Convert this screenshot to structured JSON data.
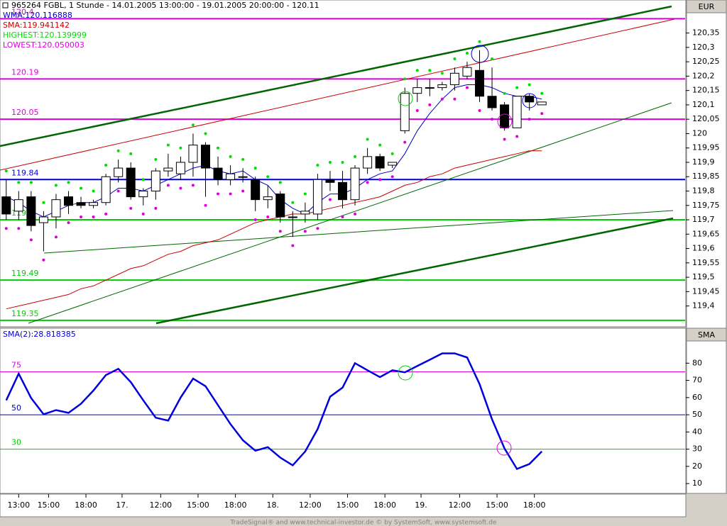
{
  "header": {
    "title": "965264  FGBL, 1 Stunde - 14.01.2005 13:00:00 - 19.01.2005 20:00:00 - 120.11"
  },
  "footer": "TradeSignal® and www.technical-investor.de © by SystemSoft, www.systemsoft.de",
  "chart_data": [
    {
      "type": "candlestick",
      "axis_label": "EUR",
      "up_color": "#ffffff",
      "down_color": "#000000",
      "open": [
        119.78,
        119.73,
        119.78,
        119.69,
        119.71,
        119.78,
        119.76,
        119.75,
        119.76,
        119.85,
        119.88,
        119.78,
        119.8,
        119.87,
        119.86,
        119.9,
        119.96,
        119.88,
        119.84,
        119.85,
        119.84,
        119.77,
        119.79,
        119.71,
        119.72,
        119.72,
        119.84,
        119.83,
        119.77,
        119.88,
        119.92,
        119.89,
        120.01,
        120.14,
        120.16,
        120.16,
        120.17,
        120.2,
        120.22,
        120.13,
        120.1,
        120.02,
        120.13,
        120.1
      ],
      "high": [
        119.84,
        119.8,
        119.8,
        119.73,
        119.79,
        119.8,
        119.78,
        119.77,
        119.86,
        119.91,
        119.9,
        119.81,
        119.88,
        119.93,
        119.92,
        120.0,
        119.97,
        119.92,
        119.89,
        119.88,
        119.85,
        119.82,
        119.8,
        119.73,
        119.76,
        119.86,
        119.87,
        119.87,
        119.89,
        119.95,
        119.93,
        119.9,
        120.16,
        120.19,
        120.19,
        120.18,
        120.23,
        120.25,
        120.29,
        120.23,
        120.11,
        120.13,
        120.14,
        120.11
      ],
      "low": [
        119.7,
        119.7,
        119.66,
        119.59,
        119.67,
        119.72,
        119.74,
        119.74,
        119.75,
        119.83,
        119.77,
        119.75,
        119.77,
        119.85,
        119.84,
        119.85,
        119.78,
        119.82,
        119.82,
        119.83,
        119.73,
        119.74,
        119.69,
        119.64,
        119.69,
        119.7,
        119.8,
        119.74,
        119.75,
        119.86,
        119.87,
        119.88,
        120.0,
        120.11,
        120.13,
        120.15,
        120.15,
        120.19,
        120.11,
        120.08,
        120.01,
        120.02,
        120.08,
        120.1
      ],
      "close": [
        119.72,
        119.77,
        119.68,
        119.71,
        119.77,
        119.75,
        119.75,
        119.76,
        119.85,
        119.88,
        119.78,
        119.8,
        119.87,
        119.88,
        119.9,
        119.96,
        119.88,
        119.84,
        119.86,
        119.85,
        119.77,
        119.78,
        119.71,
        119.71,
        119.73,
        119.84,
        119.83,
        119.77,
        119.88,
        119.92,
        119.88,
        119.9,
        120.14,
        120.16,
        120.16,
        120.17,
        120.21,
        120.23,
        120.13,
        120.09,
        120.02,
        120.13,
        120.11,
        120.11
      ],
      "series": [
        {
          "name": "WMA:120.116888",
          "color": "#0000c0",
          "style": "line",
          "values": [
            119.78,
            119.76,
            119.73,
            119.71,
            119.73,
            119.75,
            119.76,
            119.76,
            119.78,
            119.81,
            119.81,
            119.8,
            119.82,
            119.84,
            119.86,
            119.88,
            119.89,
            119.87,
            119.86,
            119.87,
            119.84,
            119.82,
            119.77,
            119.74,
            119.72,
            119.76,
            119.79,
            119.79,
            119.81,
            119.84,
            119.86,
            119.87,
            119.93,
            120.01,
            120.07,
            120.12,
            120.16,
            120.17,
            120.17,
            120.16,
            120.14,
            120.13,
            120.13,
            120.12
          ]
        },
        {
          "name": "SMA:119.941142",
          "color": "#cc0000",
          "style": "line",
          "values": [
            119.39,
            119.4,
            119.41,
            119.42,
            119.43,
            119.44,
            119.46,
            119.47,
            119.49,
            119.51,
            119.53,
            119.54,
            119.56,
            119.58,
            119.59,
            119.61,
            119.62,
            119.63,
            119.65,
            119.67,
            119.69,
            119.7,
            119.71,
            119.72,
            119.72,
            119.73,
            119.74,
            119.75,
            119.76,
            119.77,
            119.78,
            119.8,
            119.82,
            119.83,
            119.85,
            119.86,
            119.88,
            119.89,
            119.9,
            119.91,
            119.92,
            119.93,
            119.94,
            119.94
          ]
        },
        {
          "name": "HIGHEST:120.139999",
          "color": "#00dd00",
          "style": "dots",
          "values": [
            119.87,
            119.83,
            119.83,
            119.76,
            119.82,
            119.83,
            119.81,
            119.8,
            119.89,
            119.94,
            119.93,
            119.84,
            119.91,
            119.96,
            119.95,
            120.03,
            120.0,
            119.95,
            119.92,
            119.91,
            119.88,
            119.85,
            119.83,
            119.76,
            119.79,
            119.89,
            119.9,
            119.9,
            119.92,
            119.98,
            119.96,
            119.93,
            120.19,
            120.22,
            120.22,
            120.21,
            120.26,
            120.28,
            120.32,
            120.26,
            120.14,
            120.16,
            120.17,
            120.14
          ]
        },
        {
          "name": "LOWEST:120.050003",
          "color": "#dd00dd",
          "style": "dots",
          "values": [
            119.67,
            119.67,
            119.63,
            119.56,
            119.64,
            119.69,
            119.71,
            119.71,
            119.72,
            119.8,
            119.74,
            119.72,
            119.74,
            119.82,
            119.81,
            119.82,
            119.75,
            119.79,
            119.79,
            119.8,
            119.7,
            119.71,
            119.66,
            119.61,
            119.66,
            119.67,
            119.77,
            119.71,
            119.72,
            119.83,
            119.84,
            119.85,
            119.97,
            120.08,
            120.1,
            120.12,
            120.12,
            120.16,
            120.08,
            120.05,
            119.98,
            119.99,
            120.05,
            120.07
          ]
        }
      ],
      "hlines": [
        {
          "value": 120.4,
          "color": "#dd00dd"
        },
        {
          "value": 120.19,
          "color": "#dd00dd"
        },
        {
          "value": 120.05,
          "color": "#dd00dd"
        },
        {
          "value": 119.84,
          "color": "#0000dd"
        },
        {
          "value": 119.7,
          "color": "#00cc00"
        },
        {
          "value": 119.49,
          "color": "#00cc00"
        },
        {
          "value": 119.35,
          "color": "#00cc00"
        }
      ],
      "xlim": [
        -0.5,
        54.5
      ],
      "ylim": [
        119.33,
        120.46
      ],
      "yticks": [
        {
          "value": 120.35,
          "label": "120,35"
        },
        {
          "value": 120.3,
          "label": "120,3"
        },
        {
          "value": 120.25,
          "label": "120,25"
        },
        {
          "value": 120.2,
          "label": "120,2"
        },
        {
          "value": 120.15,
          "label": "120,15"
        },
        {
          "value": 120.1,
          "label": "120,1"
        },
        {
          "value": 120.05,
          "label": "120,05"
        },
        120,
        {
          "value": 119.95,
          "label": "119,95"
        },
        {
          "value": 119.9,
          "label": "119,9"
        },
        {
          "value": 119.85,
          "label": "119,85"
        },
        {
          "value": 119.8,
          "label": "119,8"
        },
        {
          "value": 119.75,
          "label": "119,75"
        },
        {
          "value": 119.7,
          "label": "119,7"
        },
        {
          "value": 119.65,
          "label": "119,65"
        },
        {
          "value": 119.6,
          "label": "119,6"
        },
        {
          "value": 119.55,
          "label": "119,55"
        },
        {
          "value": 119.5,
          "label": "119,5"
        },
        {
          "value": 119.45,
          "label": "119,45"
        },
        {
          "value": 119.4,
          "label": "119,4"
        }
      ],
      "xticks": [
        {
          "value": 1,
          "label": "13:00"
        },
        {
          "value": 3.4,
          "label": "15:00"
        },
        {
          "value": 6.4,
          "label": "18:00"
        },
        {
          "value": 9.3,
          "label": "17."
        },
        {
          "value": 12.4,
          "label": "12:00"
        },
        {
          "value": 15.4,
          "label": "15:00"
        },
        {
          "value": 18.4,
          "label": "18:00"
        },
        {
          "value": 21.4,
          "label": "18."
        },
        {
          "value": 24.4,
          "label": "12:00"
        },
        {
          "value": 27.4,
          "label": "15:00"
        },
        {
          "value": 30.4,
          "label": "18:00"
        },
        {
          "value": 33.3,
          "label": "19."
        },
        {
          "value": 36.4,
          "label": "12:00"
        },
        {
          "value": 39.4,
          "label": "15:00"
        },
        {
          "value": 42.4,
          "label": "18:00"
        }
      ]
    },
    {
      "type": "line",
      "axis_label": "SMA",
      "series": [
        {
          "name": "SMA(2):28.818385",
          "color": "#0000dd",
          "values": [
            58.4,
            73.9,
            59.7,
            50.3,
            52.7,
            51.1,
            56.4,
            64.1,
            73.1,
            76.7,
            69,
            58.4,
            48.3,
            46.6,
            60,
            71,
            66.6,
            55.6,
            44.6,
            35.2,
            29.1,
            31.2,
            25.1,
            20.6,
            28.7,
            41.7,
            60.5,
            65.8,
            80,
            75.9,
            71.9,
            75.9,
            74.7,
            78.4,
            82,
            85.7,
            85.7,
            83.3,
            67.8,
            47.4,
            30.4,
            18.5,
            21.4,
            28.7
          ]
        }
      ],
      "hlines": [
        {
          "value": 75,
          "color": "#dd00dd"
        },
        {
          "value": 50,
          "color": "#0000aa"
        },
        {
          "value": 30,
          "color": "#00cc00"
        }
      ],
      "xlim": [
        -0.5,
        54.5
      ],
      "ylim": [
        4.7,
        99.5
      ],
      "yticks": [
        80,
        70,
        60,
        50,
        40,
        30,
        20,
        10
      ]
    }
  ]
}
